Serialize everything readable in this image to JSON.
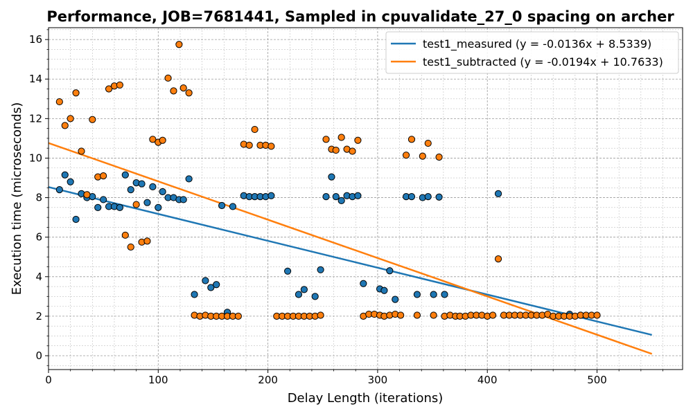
{
  "chart_data": {
    "type": "scatter",
    "title": "Performance, JOB=7681441, Sampled in cpuvalidate_27_0 spacing on archer",
    "xlabel": "Delay Length (iterations)",
    "ylabel": "Execution time (microseconds)",
    "xlim": [
      0,
      578
    ],
    "ylim": [
      -0.7,
      16.6
    ],
    "x_ticks": [
      0,
      100,
      200,
      300,
      400,
      500
    ],
    "y_ticks": [
      0,
      2,
      4,
      6,
      8,
      10,
      12,
      14,
      16
    ],
    "grid": true,
    "legend_position": "top-right",
    "series": [
      {
        "name": "test1_measured (y = -0.0136x + 8.5339)",
        "color": "#1f77b4",
        "fit": {
          "slope": -0.0136,
          "intercept": 8.5339,
          "x_range": [
            0,
            550
          ]
        },
        "points": [
          [
            10,
            8.4
          ],
          [
            15,
            9.15
          ],
          [
            20,
            8.8
          ],
          [
            25,
            6.9
          ],
          [
            30,
            8.2
          ],
          [
            35,
            8.0
          ],
          [
            40,
            8.05
          ],
          [
            45,
            7.5
          ],
          [
            50,
            7.9
          ],
          [
            55,
            7.55
          ],
          [
            60,
            7.55
          ],
          [
            65,
            7.5
          ],
          [
            70,
            9.15
          ],
          [
            75,
            8.4
          ],
          [
            80,
            8.75
          ],
          [
            85,
            8.7
          ],
          [
            90,
            7.75
          ],
          [
            95,
            8.55
          ],
          [
            100,
            7.5
          ],
          [
            104,
            8.3
          ],
          [
            109,
            8.0
          ],
          [
            114,
            8.0
          ],
          [
            119,
            7.9
          ],
          [
            123,
            7.9
          ],
          [
            128,
            8.95
          ],
          [
            133,
            3.1
          ],
          [
            143,
            3.8
          ],
          [
            148,
            3.45
          ],
          [
            153,
            3.6
          ],
          [
            158,
            7.6
          ],
          [
            163,
            2.2
          ],
          [
            168,
            7.55
          ],
          [
            178,
            8.1
          ],
          [
            183,
            8.05
          ],
          [
            188,
            8.05
          ],
          [
            193,
            8.05
          ],
          [
            198,
            8.05
          ],
          [
            203,
            8.1
          ],
          [
            218,
            4.28
          ],
          [
            228,
            3.1
          ],
          [
            233,
            3.35
          ],
          [
            243,
            3.0
          ],
          [
            248,
            4.35
          ],
          [
            253,
            8.05
          ],
          [
            258,
            9.05
          ],
          [
            262,
            8.05
          ],
          [
            267,
            7.85
          ],
          [
            272,
            8.1
          ],
          [
            277,
            8.05
          ],
          [
            282,
            8.1
          ],
          [
            287,
            3.65
          ],
          [
            302,
            3.38
          ],
          [
            306,
            3.3
          ],
          [
            311,
            4.3
          ],
          [
            316,
            2.85
          ],
          [
            326,
            8.05
          ],
          [
            331,
            8.05
          ],
          [
            336,
            3.1
          ],
          [
            341,
            8.0
          ],
          [
            346,
            8.05
          ],
          [
            351,
            3.1
          ],
          [
            356,
            8.03
          ],
          [
            361,
            3.1
          ],
          [
            410,
            8.2
          ],
          [
            475,
            2.1
          ],
          [
            485,
            2.05
          ]
        ]
      },
      {
        "name": "test1_subtracted (y = -0.0194x + 10.7633)",
        "color": "#ff7f0e",
        "fit": {
          "slope": -0.0194,
          "intercept": 10.7633,
          "x_range": [
            0,
            550
          ]
        },
        "points": [
          [
            10,
            12.85
          ],
          [
            15,
            11.65
          ],
          [
            20,
            12.0
          ],
          [
            25,
            13.3
          ],
          [
            30,
            10.35
          ],
          [
            35,
            8.15
          ],
          [
            40,
            11.95
          ],
          [
            45,
            9.05
          ],
          [
            50,
            9.1
          ],
          [
            55,
            13.5
          ],
          [
            60,
            13.65
          ],
          [
            65,
            13.7
          ],
          [
            70,
            6.1
          ],
          [
            75,
            5.5
          ],
          [
            80,
            7.65
          ],
          [
            85,
            5.75
          ],
          [
            90,
            5.8
          ],
          [
            95,
            10.95
          ],
          [
            100,
            10.8
          ],
          [
            104,
            10.9
          ],
          [
            109,
            14.05
          ],
          [
            114,
            13.4
          ],
          [
            119,
            15.75
          ],
          [
            123,
            13.55
          ],
          [
            128,
            13.3
          ],
          [
            133,
            2.05
          ],
          [
            138,
            2.0
          ],
          [
            143,
            2.05
          ],
          [
            148,
            2.0
          ],
          [
            153,
            2.0
          ],
          [
            158,
            2.0
          ],
          [
            163,
            2.0
          ],
          [
            168,
            2.0
          ],
          [
            173,
            2.0
          ],
          [
            178,
            10.7
          ],
          [
            183,
            10.65
          ],
          [
            188,
            11.45
          ],
          [
            193,
            10.65
          ],
          [
            198,
            10.65
          ],
          [
            203,
            10.6
          ],
          [
            208,
            2.0
          ],
          [
            213,
            2.0
          ],
          [
            218,
            2.0
          ],
          [
            223,
            2.0
          ],
          [
            228,
            2.0
          ],
          [
            233,
            2.0
          ],
          [
            238,
            2.0
          ],
          [
            243,
            2.0
          ],
          [
            248,
            2.05
          ],
          [
            253,
            10.95
          ],
          [
            258,
            10.45
          ],
          [
            262,
            10.4
          ],
          [
            267,
            11.05
          ],
          [
            272,
            10.45
          ],
          [
            277,
            10.35
          ],
          [
            282,
            10.9
          ],
          [
            287,
            2.0
          ],
          [
            292,
            2.1
          ],
          [
            297,
            2.1
          ],
          [
            302,
            2.05
          ],
          [
            306,
            2.0
          ],
          [
            311,
            2.05
          ],
          [
            316,
            2.1
          ],
          [
            321,
            2.05
          ],
          [
            326,
            10.15
          ],
          [
            331,
            10.95
          ],
          [
            336,
            2.05
          ],
          [
            341,
            10.1
          ],
          [
            346,
            10.75
          ],
          [
            351,
            2.05
          ],
          [
            356,
            10.05
          ],
          [
            361,
            2.0
          ],
          [
            366,
            2.05
          ],
          [
            371,
            2.0
          ],
          [
            375,
            2.0
          ],
          [
            380,
            2.0
          ],
          [
            385,
            2.05
          ],
          [
            390,
            2.05
          ],
          [
            395,
            2.05
          ],
          [
            400,
            2.0
          ],
          [
            405,
            2.05
          ],
          [
            410,
            4.9
          ],
          [
            415,
            2.05
          ],
          [
            420,
            2.05
          ],
          [
            425,
            2.05
          ],
          [
            430,
            2.05
          ],
          [
            435,
            2.05
          ],
          [
            440,
            2.05
          ],
          [
            445,
            2.05
          ],
          [
            450,
            2.05
          ],
          [
            455,
            2.1
          ],
          [
            460,
            2.0
          ],
          [
            465,
            2.0
          ],
          [
            470,
            2.0
          ],
          [
            475,
            2.0
          ],
          [
            480,
            2.0
          ],
          [
            485,
            2.05
          ],
          [
            490,
            2.05
          ],
          [
            495,
            2.05
          ],
          [
            500,
            2.05
          ]
        ]
      }
    ]
  }
}
